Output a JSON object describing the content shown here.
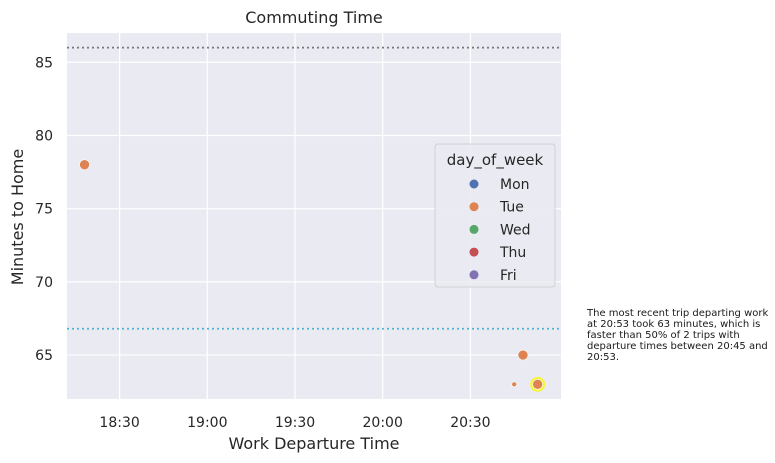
{
  "chart_data": {
    "type": "scatter",
    "title": "Commuting Time",
    "xlabel": "Work Departure Time",
    "ylabel": "Minutes to Home",
    "x_ticks": [
      "18:30",
      "19:00",
      "19:30",
      "20:00",
      "20:30"
    ],
    "y_ticks": [
      "65",
      "70",
      "75",
      "80",
      "85"
    ],
    "xlim": [
      "18:12",
      "21:01"
    ],
    "ylim": [
      62,
      87
    ],
    "grid": true,
    "legend": {
      "title": "day_of_week",
      "placement": "center-right",
      "entries": [
        {
          "label": "Mon",
          "color": "#4c72b0"
        },
        {
          "label": "Tue",
          "color": "#dd8452"
        },
        {
          "label": "Wed",
          "color": "#55a868"
        },
        {
          "label": "Thu",
          "color": "#c44e52"
        },
        {
          "label": "Fri",
          "color": "#8172b3"
        }
      ]
    },
    "points": [
      {
        "x": "18:18",
        "y": 78,
        "day": "Tue"
      },
      {
        "x": "20:48",
        "y": 65,
        "day": "Tue"
      },
      {
        "x": "20:45",
        "y": 63,
        "day": "Tue"
      },
      {
        "x": "20:53",
        "y": 63,
        "day": "Tue",
        "highlighted": true
      }
    ],
    "reference_lines": [
      {
        "y": 86,
        "color": "#777777",
        "style": "dotted"
      },
      {
        "y": 66.8,
        "color": "#4fb3d9",
        "style": "dotted"
      }
    ],
    "highlight_color": "#f5f53a",
    "annotation": "The most recent trip departing work at 20:53 took 63 minutes, which is faster than 50% of 2 trips with departure times between 20:45 and 20:53."
  }
}
